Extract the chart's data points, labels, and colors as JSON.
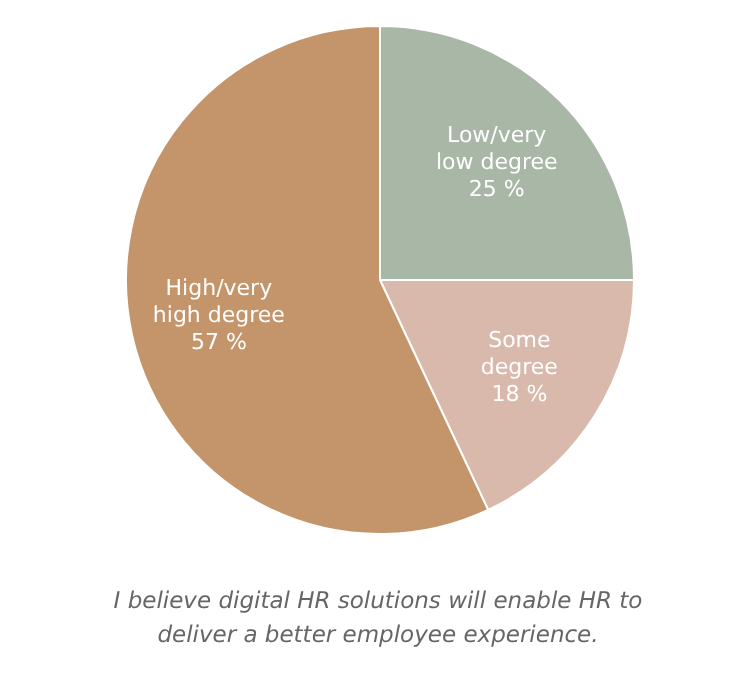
{
  "chart_data": {
    "type": "pie",
    "title": "I believe digital HR solutions will enable HR to deliver a better employee experience.",
    "categories": [
      "Low/very\nlow degree",
      "Some\ndegree",
      "High/very\nhigh degree"
    ],
    "values": [
      25,
      18,
      57
    ],
    "value_labels": [
      "25 %",
      "18 %",
      "57 %"
    ],
    "colors": [
      "#a8b7a6",
      "#d8b9ab",
      "#c4956b"
    ]
  }
}
